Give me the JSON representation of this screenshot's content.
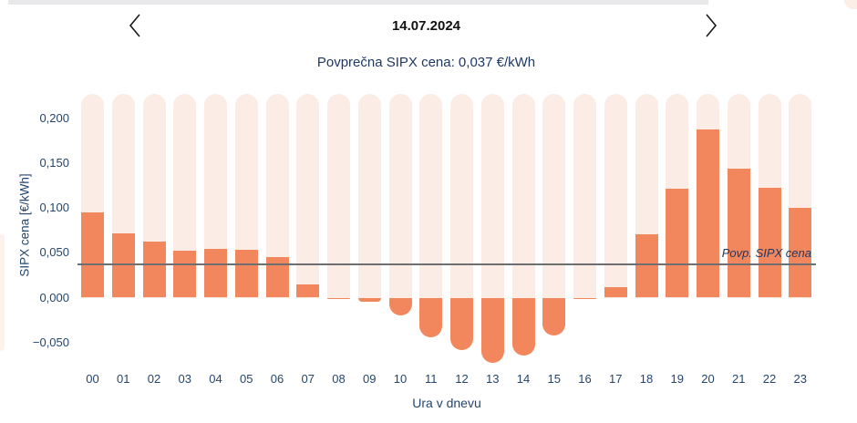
{
  "header": {
    "date": "14.07.2024",
    "prev_icon": "chevron-left",
    "next_icon": "chevron-right"
  },
  "subtitle": "Povprečna SIPX cena: 0,037 €/kWh",
  "chart_data": {
    "type": "bar",
    "title": "14.07.2024",
    "subtitle": "Povprečna SIPX cena: 0,037 €/kWh",
    "categories": [
      "00",
      "01",
      "02",
      "03",
      "04",
      "05",
      "06",
      "07",
      "08",
      "09",
      "10",
      "11",
      "12",
      "13",
      "14",
      "15",
      "16",
      "17",
      "18",
      "19",
      "20",
      "21",
      "22",
      "23"
    ],
    "values": [
      0.095,
      0.072,
      0.062,
      0.052,
      0.054,
      0.053,
      0.045,
      0.015,
      -0.002,
      -0.005,
      -0.02,
      -0.044,
      -0.058,
      -0.073,
      -0.065,
      -0.042,
      -0.002,
      0.012,
      0.071,
      0.121,
      0.188,
      0.144,
      0.122,
      0.1
    ],
    "xlabel": "Ura v dnevu",
    "ylabel": "SIPX cena [€/kWh]",
    "yticks": [
      0.2,
      0.15,
      0.1,
      0.05,
      0.0,
      -0.05
    ],
    "ytick_labels": [
      "0,200",
      "0,150",
      "0,100",
      "0,050",
      "0,000",
      "−0,050"
    ],
    "ylim": [
      -0.075,
      0.225
    ],
    "grid": false,
    "legend": "none",
    "avg_line": {
      "value": 0.037,
      "label": "Povp. SIPX cena"
    },
    "colors": {
      "bar": "#f2875e",
      "bar_background": "#fbede5",
      "avg_line": "#6e6f71",
      "axis_text": "#24466e",
      "title_text": "#111111",
      "subtitle_text": "#1f3864"
    }
  }
}
